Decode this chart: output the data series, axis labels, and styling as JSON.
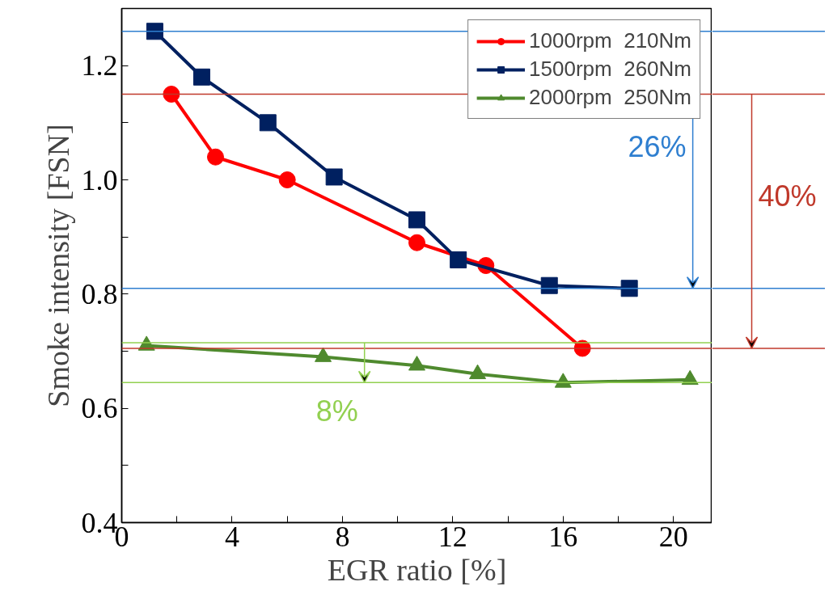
{
  "chart_data": {
    "type": "line",
    "xlabel": "EGR ratio [%]",
    "ylabel": "Smoke intensity [FSN]",
    "xlim": [
      0,
      21.4
    ],
    "ylim": [
      0.4,
      1.3
    ],
    "xticks": [
      0,
      {
        "value": 2,
        "label": null
      },
      4,
      {
        "value": 6,
        "label": null
      },
      8,
      {
        "value": 10,
        "label": null
      },
      12,
      {
        "value": 14,
        "label": null
      },
      16,
      {
        "value": 18,
        "label": null
      },
      20
    ],
    "yticks": [
      0.4,
      {
        "value": 0.5,
        "label": null
      },
      0.6,
      {
        "value": 0.7,
        "label": null
      },
      0.8,
      {
        "value": 0.9,
        "label": null
      },
      "1.0",
      {
        "value": 1.1,
        "label": null
      },
      1.2
    ],
    "legend": "top right",
    "grid": false,
    "series": [
      {
        "name": "1000rpm  210Nm",
        "color": "#ff0000",
        "marker": "circle",
        "x": [
          1.8,
          3.4,
          6.0,
          10.7,
          13.2,
          16.7
        ],
        "values": [
          1.15,
          1.04,
          1.0,
          0.89,
          0.85,
          0.705
        ]
      },
      {
        "name": "1500rpm  260Nm",
        "color": "#002060",
        "marker": "square",
        "x": [
          1.2,
          2.9,
          5.3,
          7.7,
          10.7,
          12.2,
          15.5,
          18.4
        ],
        "values": [
          1.26,
          1.18,
          1.1,
          1.005,
          0.93,
          0.86,
          0.815,
          0.81
        ]
      },
      {
        "name": "2000rpm  250Nm",
        "color": "#4f8a2e",
        "marker": "triangle",
        "x": [
          0.9,
          7.3,
          10.7,
          12.9,
          16.0,
          20.6
        ],
        "values": [
          0.71,
          0.69,
          0.675,
          0.66,
          0.645,
          0.65
        ]
      }
    ],
    "ref_lines": [
      {
        "axis": "y",
        "value": 1.26,
        "color": "#2f7fd0"
      },
      {
        "axis": "y",
        "value": 0.81,
        "color": "#2f7fd0"
      },
      {
        "axis": "y",
        "value": 1.15,
        "color": "#c0392b"
      },
      {
        "axis": "y",
        "value": 0.705,
        "color": "#c0392b"
      },
      {
        "axis": "y",
        "value": 0.715,
        "color": "#92d050"
      },
      {
        "axis": "y",
        "value": 0.645,
        "color": "#92d050"
      }
    ],
    "annotations": [
      "26%",
      "40%",
      "8%"
    ]
  }
}
